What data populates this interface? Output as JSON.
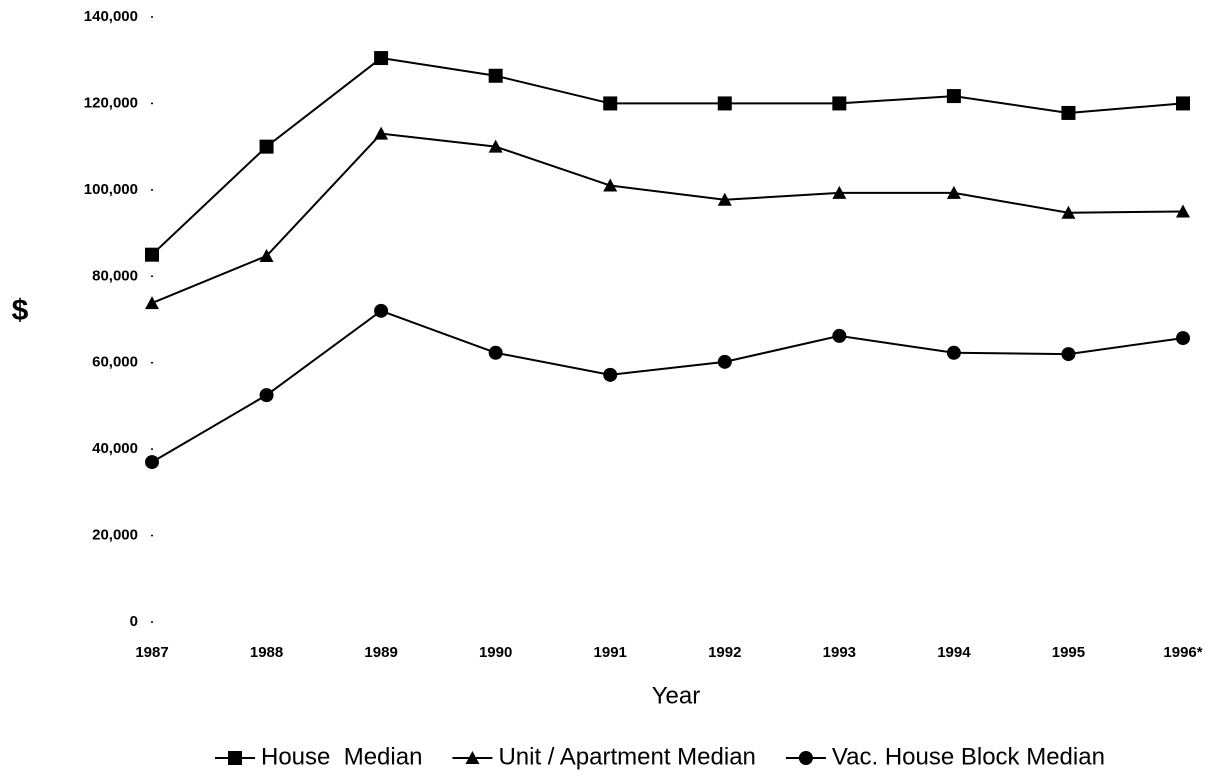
{
  "chart_data": {
    "type": "line",
    "x_label": "Year",
    "y_label": "$",
    "categories": [
      "1987",
      "1988",
      "1989",
      "1990",
      "1991",
      "1992",
      "1993",
      "1994",
      "1995",
      "1996*"
    ],
    "series": [
      {
        "name": "House  Median",
        "color": "#000000",
        "marker": "square",
        "values": [
          85000,
          110000,
          130500,
          126400,
          120000,
          120000,
          120000,
          121700,
          117800,
          120000
        ]
      },
      {
        "name": "Unit / Apartment Median",
        "color": "#000000",
        "marker": "triangle",
        "values": [
          73800,
          84700,
          113000,
          110000,
          101000,
          97700,
          99300,
          99300,
          94700,
          95000
        ]
      },
      {
        "name": "Vac. House Block Median",
        "color": "#000000",
        "marker": "circle",
        "values": [
          37000,
          52500,
          72000,
          62300,
          57200,
          60200,
          66200,
          62300,
          62000,
          65700
        ]
      }
    ],
    "ylim": [
      0,
      140000
    ],
    "yticks": [
      0,
      {
        "value": 20000,
        "label": "20,000"
      },
      {
        "value": 40000,
        "label": "40,000"
      },
      {
        "value": 60000,
        "label": "60,000"
      },
      {
        "value": 80000,
        "label": "80,000"
      },
      {
        "value": 100000,
        "label": "100,000"
      },
      {
        "value": 120000,
        "label": "120,000"
      },
      {
        "value": 140000,
        "label": "140,000"
      }
    ],
    "grid": false,
    "legend": "bottom"
  }
}
